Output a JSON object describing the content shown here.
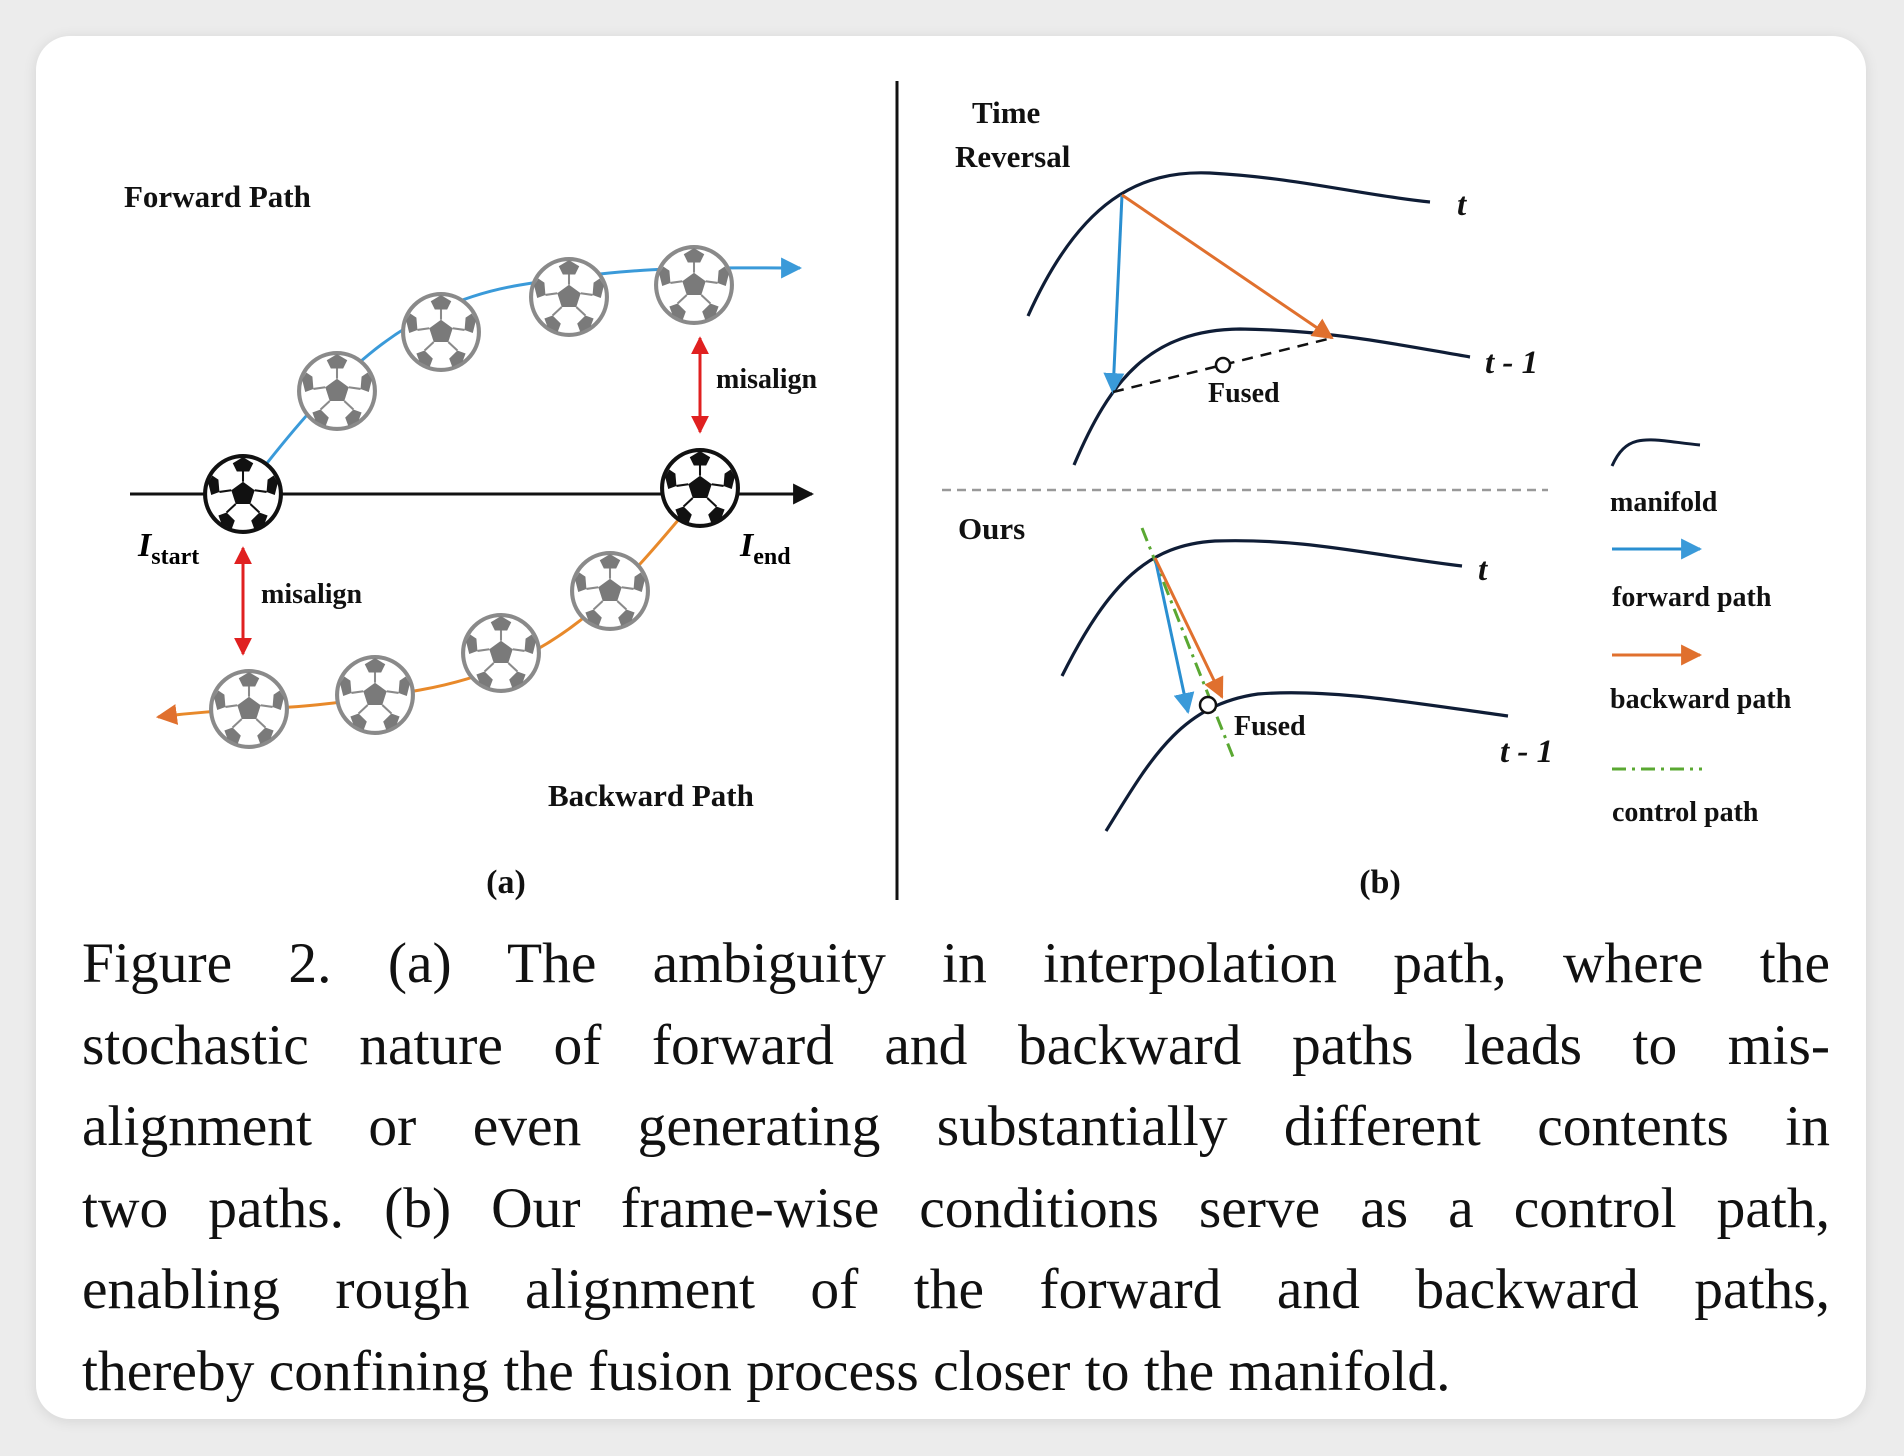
{
  "panel_a": {
    "title_forward": "Forward Path",
    "title_backward": "Backward Path",
    "label_misalign_top": "misalign",
    "label_misalign_bottom": "misalign",
    "label_start_main": "I",
    "label_start_sub": "start",
    "label_end_main": "I",
    "label_end_sub": "end",
    "panel_label": "(a)",
    "forward_color": "#3a9ad9",
    "backward_color": "#e8892a",
    "misalign_color": "#e02020"
  },
  "panel_b": {
    "time_reversal_line1": "Time",
    "time_reversal_line2": "Reversal",
    "ours": "Ours",
    "t_top": "t",
    "t_minus_1_top": "t - 1",
    "fused_top": "Fused",
    "t_bottom": "t",
    "t_minus_1_bottom": "t - 1",
    "fused_bottom": "Fused",
    "panel_label": "(b)",
    "forward_color": "#2a8fd1",
    "backward_color": "#e0702e",
    "control_color": "#5aa832"
  },
  "legend": {
    "manifold": "manifold",
    "forward_path": "forward path",
    "backward_path": "backward path",
    "control_path": "control path"
  },
  "caption": {
    "lines": [
      "Figure 2.  (a) The ambiguity in interpolation path, where the",
      "stochastic nature of forward and backward paths leads to mis-",
      "alignment or even generating substantially different contents in",
      "two paths. (b) Our frame-wise conditions serve as a control path,",
      "enabling rough alignment of the forward and backward paths,",
      "thereby confining the fusion process closer to the manifold."
    ]
  }
}
